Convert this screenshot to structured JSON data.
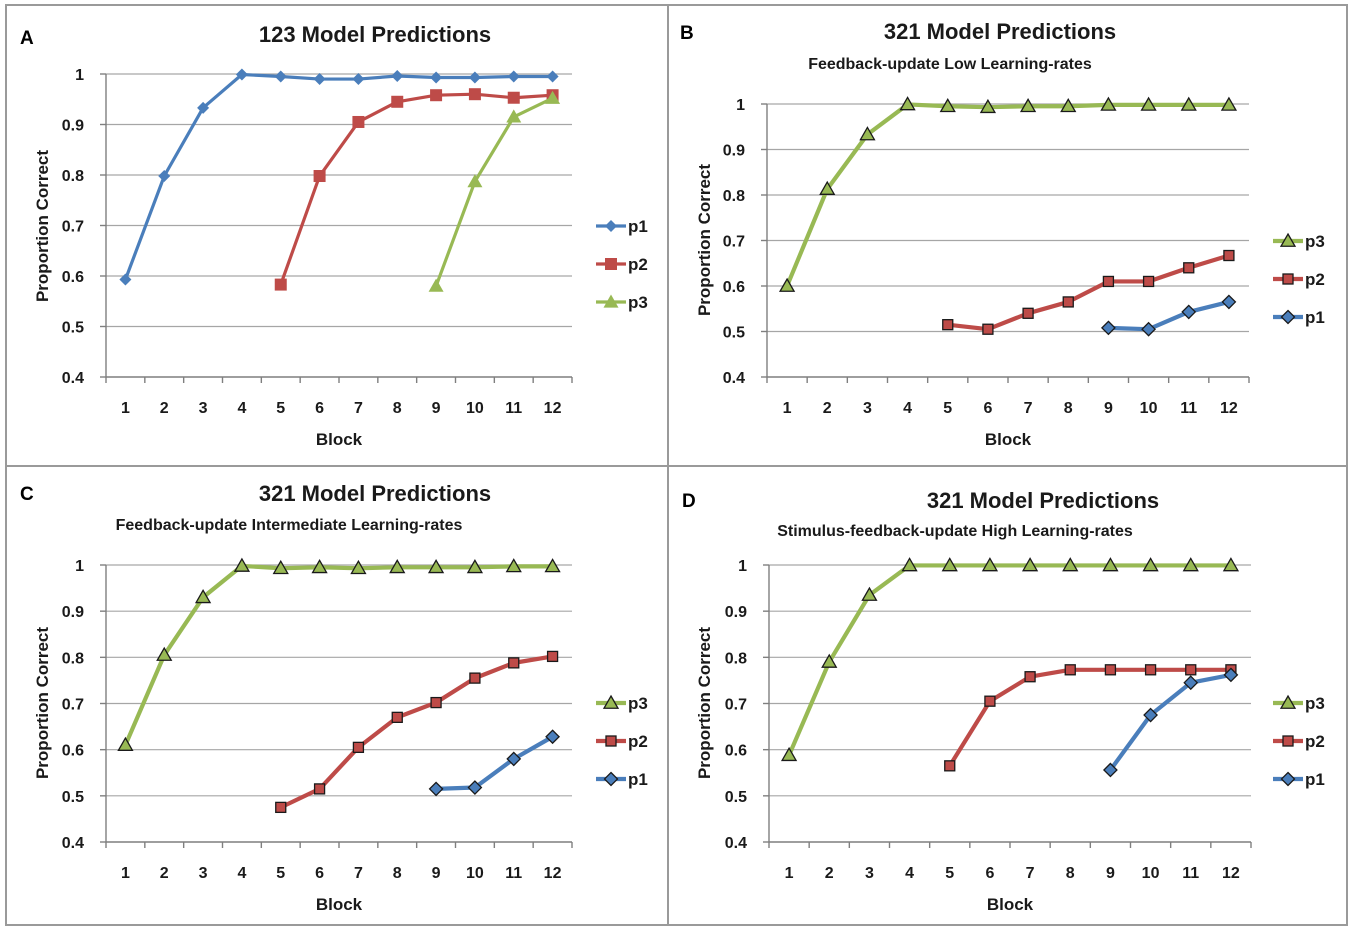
{
  "chart_data": [
    {
      "type": "line",
      "panel_label": "A",
      "title": "123 Model Predictions",
      "subtitle": "",
      "xlabel": "Block",
      "ylabel": "Proportion Correct",
      "categories": [
        "1",
        "2",
        "3",
        "4",
        "5",
        "6",
        "7",
        "8",
        "9",
        "10",
        "11",
        "12"
      ],
      "ylim": [
        0.4,
        1.0
      ],
      "yticks": [
        "0.4",
        "0.5",
        "0.6",
        "0.7",
        "0.8",
        "0.9",
        "1"
      ],
      "grid": true,
      "legend": "right",
      "marker_style": "solid",
      "series": [
        {
          "name": "p1",
          "color": "#4a7ebb",
          "marker": "diamond",
          "values": [
            0.593,
            0.798,
            0.933,
            0.999,
            0.995,
            0.99,
            0.99,
            0.996,
            0.993,
            0.993,
            0.995,
            0.995
          ]
        },
        {
          "name": "p2",
          "color": "#be4b48",
          "marker": "square",
          "values": [
            null,
            null,
            null,
            null,
            0.583,
            0.798,
            0.905,
            0.945,
            0.958,
            0.96,
            0.953,
            0.958
          ]
        },
        {
          "name": "p3",
          "color": "#98b954",
          "marker": "triangle",
          "values": [
            null,
            null,
            null,
            null,
            null,
            null,
            null,
            null,
            0.58,
            0.787,
            0.915,
            0.952
          ]
        }
      ]
    },
    {
      "type": "line",
      "panel_label": "B",
      "title": "321 Model Predictions",
      "subtitle": "Feedback-update Low Learning-rates",
      "xlabel": "Block",
      "ylabel": "Proportion Correct",
      "categories": [
        "1",
        "2",
        "3",
        "4",
        "5",
        "6",
        "7",
        "8",
        "9",
        "10",
        "11",
        "12"
      ],
      "ylim": [
        0.4,
        1.0
      ],
      "yticks": [
        "0.4",
        "0.5",
        "0.6",
        "0.7",
        "0.8",
        "0.9",
        "1"
      ],
      "grid": true,
      "legend": "right",
      "marker_style": "outlined",
      "series": [
        {
          "name": "p3",
          "color": "#98b954",
          "marker": "triangle",
          "values": [
            0.6,
            0.813,
            0.933,
            0.999,
            0.995,
            0.993,
            0.995,
            0.995,
            0.998,
            0.998,
            0.998,
            0.998
          ]
        },
        {
          "name": "p2",
          "color": "#be4b48",
          "marker": "square",
          "values": [
            null,
            null,
            null,
            null,
            0.515,
            0.505,
            0.54,
            0.565,
            0.61,
            0.61,
            0.64,
            0.667
          ]
        },
        {
          "name": "p1",
          "color": "#4a7ebb",
          "marker": "diamond",
          "values": [
            null,
            null,
            null,
            null,
            null,
            null,
            null,
            null,
            0.508,
            0.505,
            0.543,
            0.565
          ]
        }
      ]
    },
    {
      "type": "line",
      "panel_label": "C",
      "title": "321 Model Predictions",
      "subtitle": "Feedback-update Intermediate Learning-rates",
      "xlabel": "Block",
      "ylabel": "Proportion Correct",
      "categories": [
        "1",
        "2",
        "3",
        "4",
        "5",
        "6",
        "7",
        "8",
        "9",
        "10",
        "11",
        "12"
      ],
      "ylim": [
        0.4,
        1.0
      ],
      "yticks": [
        "0.4",
        "0.5",
        "0.6",
        "0.7",
        "0.8",
        "0.9",
        "1"
      ],
      "grid": true,
      "legend": "right",
      "marker_style": "outlined",
      "series": [
        {
          "name": "p3",
          "color": "#98b954",
          "marker": "triangle",
          "values": [
            0.61,
            0.805,
            0.93,
            0.998,
            0.993,
            0.995,
            0.993,
            0.995,
            0.995,
            0.995,
            0.997,
            0.997
          ]
        },
        {
          "name": "p2",
          "color": "#be4b48",
          "marker": "square",
          "values": [
            null,
            null,
            null,
            null,
            0.475,
            0.515,
            0.605,
            0.67,
            0.702,
            0.755,
            0.788,
            0.802
          ]
        },
        {
          "name": "p1",
          "color": "#4a7ebb",
          "marker": "diamond",
          "values": [
            null,
            null,
            null,
            null,
            null,
            null,
            null,
            null,
            0.515,
            0.518,
            0.58,
            0.628
          ]
        }
      ]
    },
    {
      "type": "line",
      "panel_label": "D",
      "title": "321 Model Predictions",
      "subtitle": "Stimulus-feedback-update High Learning-rates",
      "xlabel": "Block",
      "ylabel": "Proportion Correct",
      "categories": [
        "1",
        "2",
        "3",
        "4",
        "5",
        "6",
        "7",
        "8",
        "9",
        "10",
        "11",
        "12"
      ],
      "ylim": [
        0.4,
        1.0
      ],
      "yticks": [
        "0.4",
        "0.5",
        "0.6",
        "0.7",
        "0.8",
        "0.9",
        "1"
      ],
      "grid": true,
      "legend": "right",
      "marker_style": "outlined",
      "series": [
        {
          "name": "p3",
          "color": "#98b954",
          "marker": "triangle",
          "values": [
            0.588,
            0.79,
            0.935,
            0.999,
            0.999,
            0.999,
            0.999,
            0.999,
            0.999,
            0.999,
            0.999,
            0.999
          ]
        },
        {
          "name": "p2",
          "color": "#be4b48",
          "marker": "square",
          "values": [
            null,
            null,
            null,
            null,
            0.565,
            0.705,
            0.758,
            0.773,
            0.773,
            0.773,
            0.773,
            0.773
          ]
        },
        {
          "name": "p1",
          "color": "#4a7ebb",
          "marker": "diamond",
          "values": [
            null,
            null,
            null,
            null,
            null,
            null,
            null,
            null,
            0.556,
            0.675,
            0.745,
            0.762
          ]
        }
      ]
    }
  ]
}
